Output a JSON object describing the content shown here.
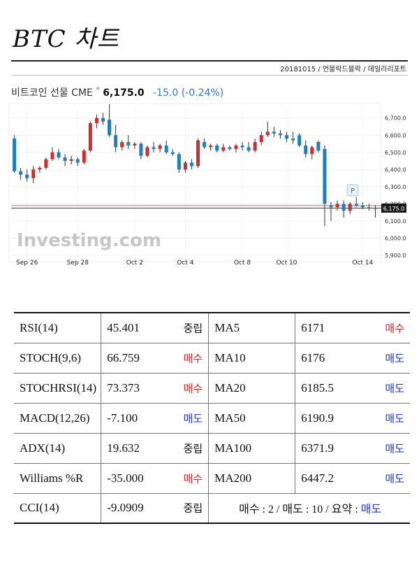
{
  "header": {
    "title": "BTC 차트",
    "byline": "20181015 / 언블락드블락 / 데일리리포트"
  },
  "quote": {
    "name": "비트코인 선물 CME",
    "star": "*",
    "price": "6,175.0",
    "change": "-15.0 (-0.24%)"
  },
  "watermark": {
    "text": "Investing.com"
  },
  "colors": {
    "up": "#d12d2d",
    "down": "#1b7fc4",
    "hline_red": "#d86a6a",
    "hline_dark": "#444444"
  },
  "chart_data": {
    "type": "candlestick",
    "x_labels": [
      "Sep 26",
      "Sep 28",
      "Oct 2",
      "Oct 4",
      "Oct 8",
      "Oct 10",
      "Oct 14"
    ],
    "y_ticks": [
      "6,700.0",
      "6,600.0",
      "6,500.0",
      "6,400.0",
      "6,300.0",
      "6,200.0",
      "6,100.0",
      "6,000.0",
      "5,900.0"
    ],
    "y_tick_values": [
      6700,
      6600,
      6500,
      6400,
      6300,
      6200,
      6100,
      6000,
      5900
    ],
    "ylim": [
      5900,
      6760
    ],
    "current_price_label": "6,175.0",
    "current_price": 6175,
    "reference_price": 6190,
    "marker_label": "P",
    "candles": [
      [
        6580,
        6600,
        6380,
        6390
      ],
      [
        6390,
        6410,
        6340,
        6370
      ],
      [
        6370,
        6400,
        6330,
        6350
      ],
      [
        6350,
        6420,
        6320,
        6400
      ],
      [
        6400,
        6420,
        6380,
        6410
      ],
      [
        6410,
        6470,
        6400,
        6460
      ],
      [
        6460,
        6530,
        6450,
        6500
      ],
      [
        6500,
        6520,
        6460,
        6470
      ],
      [
        6470,
        6490,
        6420,
        6450
      ],
      [
        6450,
        6480,
        6430,
        6460
      ],
      [
        6460,
        6470,
        6420,
        6440
      ],
      [
        6440,
        6520,
        6430,
        6510
      ],
      [
        6510,
        6680,
        6500,
        6670
      ],
      [
        6670,
        6720,
        6640,
        6700
      ],
      [
        6700,
        6730,
        6660,
        6680
      ],
      [
        6690,
        6780,
        6590,
        6600
      ],
      [
        6600,
        6660,
        6500,
        6530
      ],
      [
        6530,
        6570,
        6510,
        6560
      ],
      [
        6560,
        6600,
        6520,
        6540
      ],
      [
        6540,
        6560,
        6520,
        6550
      ],
      [
        6550,
        6560,
        6460,
        6480
      ],
      [
        6480,
        6540,
        6470,
        6530
      ],
      [
        6530,
        6560,
        6500,
        6520
      ],
      [
        6520,
        6550,
        6500,
        6540
      ],
      [
        6540,
        6570,
        6490,
        6500
      ],
      [
        6500,
        6520,
        6480,
        6490
      ],
      [
        6490,
        6500,
        6380,
        6400
      ],
      [
        6400,
        6450,
        6380,
        6440
      ],
      [
        6440,
        6460,
        6400,
        6420
      ],
      [
        6420,
        6580,
        6410,
        6570
      ],
      [
        6560,
        6580,
        6520,
        6530
      ],
      [
        6530,
        6550,
        6510,
        6540
      ],
      [
        6540,
        6550,
        6500,
        6510
      ],
      [
        6510,
        6550,
        6500,
        6530
      ],
      [
        6530,
        6540,
        6510,
        6520
      ],
      [
        6520,
        6550,
        6500,
        6540
      ],
      [
        6540,
        6560,
        6510,
        6530
      ],
      [
        6530,
        6560,
        6500,
        6510
      ],
      [
        6510,
        6580,
        6500,
        6560
      ],
      [
        6560,
        6620,
        6540,
        6600
      ],
      [
        6600,
        6680,
        6590,
        6620
      ],
      [
        6620,
        6650,
        6590,
        6610
      ],
      [
        6610,
        6630,
        6580,
        6600
      ],
      [
        6600,
        6620,
        6560,
        6580
      ],
      [
        6580,
        6620,
        6550,
        6570
      ],
      [
        6600,
        6610,
        6530,
        6540
      ],
      [
        6540,
        6570,
        6470,
        6490
      ],
      [
        6490,
        6540,
        6460,
        6530
      ],
      [
        6560,
        6570,
        6500,
        6510
      ],
      [
        6520,
        6540,
        6070,
        6200
      ],
      [
        6190,
        6210,
        6100,
        6180
      ],
      [
        6180,
        6220,
        6160,
        6200
      ],
      [
        6200,
        6220,
        6120,
        6160
      ],
      [
        6160,
        6210,
        6140,
        6200
      ],
      [
        6200,
        6240,
        6180,
        6190
      ],
      [
        6190,
        6210,
        6170,
        6180
      ],
      [
        6180,
        6200,
        6160,
        6175
      ],
      [
        6175,
        6190,
        6120,
        6175
      ]
    ]
  },
  "indicators": {
    "rows": [
      {
        "name": "RSI(14)",
        "value": "45.401",
        "signal": "중립",
        "signal_type": "neutral",
        "ma": "MA5",
        "ma_value": "6171",
        "ma_signal": "매수",
        "ma_signal_type": "buy"
      },
      {
        "name": "STOCH(9,6)",
        "value": "66.759",
        "signal": "매수",
        "signal_type": "buy",
        "ma": "MA10",
        "ma_value": "6176",
        "ma_signal": "매도",
        "ma_signal_type": "sell"
      },
      {
        "name": "STOCHRSI(14)",
        "value": "73.373",
        "signal": "매수",
        "signal_type": "buy",
        "ma": "MA20",
        "ma_value": "6185.5",
        "ma_signal": "매도",
        "ma_signal_type": "sell"
      },
      {
        "name": "MACD(12,26)",
        "value": "-7.100",
        "signal": "매도",
        "signal_type": "sell",
        "ma": "MA50",
        "ma_value": "6190.9",
        "ma_signal": "매도",
        "ma_signal_type": "sell"
      },
      {
        "name": "ADX(14)",
        "value": "19.632",
        "signal": "중립",
        "signal_type": "neutral",
        "ma": "MA100",
        "ma_value": "6371.9",
        "ma_signal": "매도",
        "ma_signal_type": "sell"
      },
      {
        "name": "Williams %R",
        "value": "-35.000",
        "signal": "매수",
        "signal_type": "buy",
        "ma": "MA200",
        "ma_value": "6447.2",
        "ma_signal": "매도",
        "ma_signal_type": "sell"
      }
    ],
    "last": {
      "name": "CCI(14)",
      "value": "-9.0909",
      "signal": "중립",
      "signal_type": "neutral"
    },
    "summary": {
      "text": "매수 : 2 / 매도 : 10 / 요약 : ",
      "verdict": "매도"
    }
  }
}
